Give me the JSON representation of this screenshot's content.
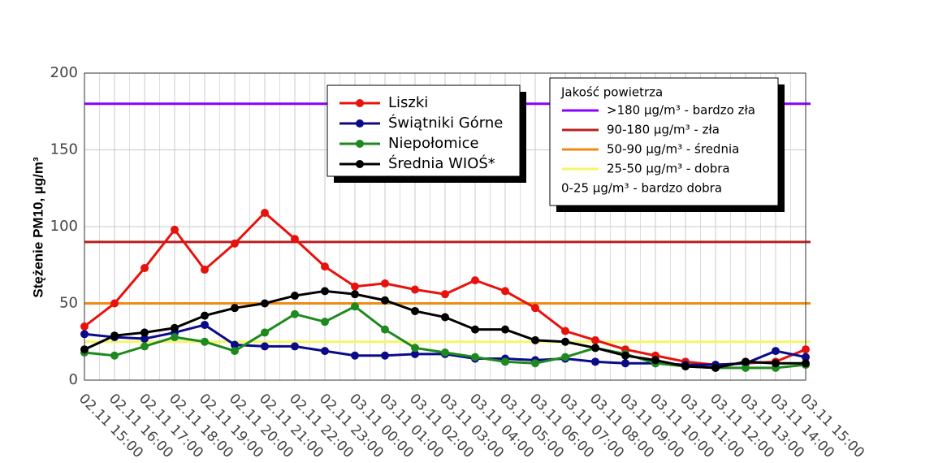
{
  "chart_data": {
    "type": "line",
    "y_label": "Stężenie PM10, µg/m³",
    "categories": [
      "02.11 15:00",
      "02.11 16:00",
      "02.11 17:00",
      "02.11 18:00",
      "02.11 19:00",
      "02.11 20:00",
      "02.11 21:00",
      "02.11 22:00",
      "02.11 23:00",
      "03.11 00:00",
      "03.11 01:00",
      "03.11 02:00",
      "03.11 03:00",
      "03.11 04:00",
      "03.11 05:00",
      "03.11 06:00",
      "03.11 07:00",
      "03.11 08:00",
      "03.11 09:00",
      "03.11 10:00",
      "03.11 11:00",
      "03.11 12:00",
      "03.11 13:00",
      "03.11 14:00",
      "03.11 15:00"
    ],
    "series": [
      {
        "name": "Liszki",
        "color": "#e8120c",
        "values": [
          35,
          50,
          73,
          98,
          72,
          89,
          109,
          92,
          74,
          61,
          63,
          59,
          56,
          65,
          58,
          47,
          32,
          26,
          20,
          16,
          12,
          10,
          11,
          12,
          20
        ]
      },
      {
        "name": "Świątniki Górne",
        "color": "#0b0b8a",
        "values": [
          30,
          28,
          27,
          31,
          36,
          23,
          22,
          22,
          19,
          16,
          16,
          17,
          17,
          14,
          14,
          13,
          14,
          12,
          11,
          11,
          10,
          10,
          11,
          19,
          15
        ]
      },
      {
        "name": "Niepołomice",
        "color": "#1e8a1e",
        "values": [
          18,
          16,
          22,
          28,
          25,
          19,
          31,
          43,
          38,
          48,
          33,
          21,
          18,
          15,
          12,
          11,
          15,
          21,
          17,
          11,
          9,
          8,
          8,
          8,
          10
        ]
      },
      {
        "name": "Średnia WIOŚ*",
        "color": "#000000",
        "values": [
          20,
          29,
          31,
          34,
          42,
          47,
          50,
          55,
          58,
          56,
          52,
          45,
          41,
          33,
          33,
          26,
          25,
          21,
          16,
          13,
          9,
          8,
          12,
          11,
          11
        ]
      }
    ],
    "ylim": [
      0,
      200
    ],
    "yticks": [
      0,
      50,
      100,
      150,
      200
    ],
    "grid": true,
    "quality_legend": {
      "title": "Jakość powietrza",
      "items": [
        {
          "label": ">180 µg/m³ - bardzo zła",
          "color": "#8a00ff",
          "value": 180
        },
        {
          "label": "90-180 µg/m³ - zła",
          "color": "#b82020",
          "value": 90
        },
        {
          "label": "50-90 µg/m³ - średnia",
          "color": "#f08a10",
          "value": 50
        },
        {
          "label": "25-50 µg/m³ - dobra",
          "color": "#f5f56a",
          "value": 25
        },
        {
          "label": "0-25 µg/m³ - bardzo dobra"
        }
      ]
    }
  }
}
